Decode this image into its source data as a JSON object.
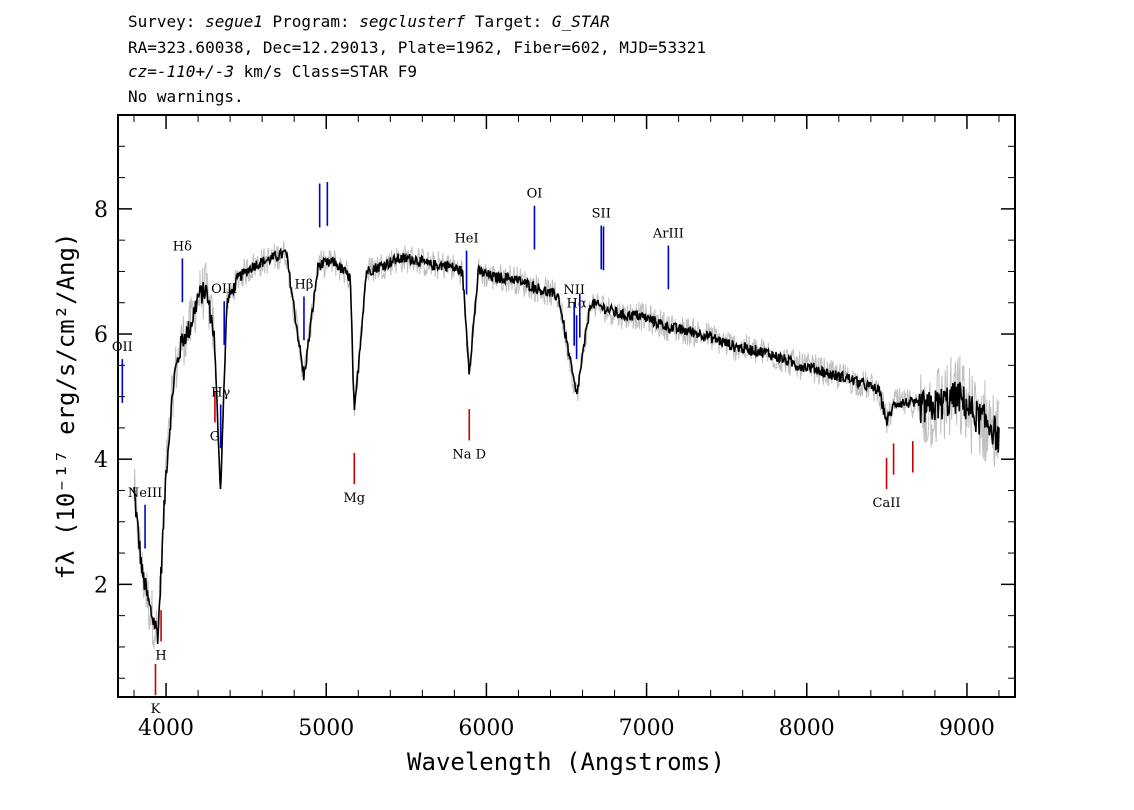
{
  "header": {
    "survey_label": "Survey:",
    "survey": "segue1",
    "program_label": "Program:",
    "program": "segclusterf",
    "target_label": "Target:",
    "target": "G_STAR",
    "line2": "RA=323.60038, Dec=12.29013, Plate=1962, Fiber=602, MJD=53321",
    "cz_label": "cz=",
    "cz_value": "-110+/-3",
    "cz_unit_class": "km/s Class=STAR F9",
    "warnings": "No warnings."
  },
  "colors": {
    "flux": "#000000",
    "error": "#c0c0c0",
    "emission": "#0000cc",
    "absorption": "#cc0000"
  },
  "chart_data": {
    "type": "line",
    "xlabel": "Wavelength (Angstroms)",
    "ylabel": "fλ (10⁻¹⁷ erg/s/cm²/Ang)",
    "xlim": [
      3700,
      9300
    ],
    "ylim": [
      0.2,
      9.5
    ],
    "x_ticks": [
      4000,
      5000,
      6000,
      7000,
      8000,
      9000
    ],
    "x_tick_labels": [
      "4000",
      "5000",
      "6000",
      "7000",
      "8000",
      "9000"
    ],
    "y_ticks": [
      2,
      4,
      6,
      8
    ],
    "y_tick_labels": [
      "2",
      "4",
      "6",
      "8"
    ],
    "grid": false,
    "series": [
      {
        "x": [
          3800,
          3850,
          3900,
          3950,
          4000,
          4050,
          4100,
          4150,
          4200,
          4250,
          4300,
          4340,
          4380,
          4450,
          4550,
          4650,
          4750,
          4861,
          4950,
          5050,
          5150,
          5175,
          5250,
          5350,
          5450,
          5550,
          5650,
          5750,
          5850,
          5893,
          5950,
          6050,
          6150,
          6250,
          6350,
          6450,
          6563,
          6650,
          6750,
          6850,
          6950,
          7050,
          7150,
          7250,
          7350,
          7450,
          7550,
          7650,
          7750,
          7850,
          7950,
          8050,
          8150,
          8250,
          8350,
          8450,
          8500,
          8550,
          8650,
          8750,
          8850,
          8950,
          9050,
          9150,
          9200
        ],
        "y": [
          3.5,
          2.2,
          1.6,
          1.2,
          3.8,
          5.3,
          5.9,
          6.1,
          6.6,
          6.7,
          6.0,
          3.5,
          6.5,
          6.9,
          7.1,
          7.2,
          7.3,
          5.3,
          7.1,
          7.15,
          6.9,
          4.7,
          7.0,
          7.1,
          7.2,
          7.2,
          7.1,
          7.1,
          7.0,
          5.4,
          7.0,
          6.9,
          6.9,
          6.8,
          6.7,
          6.6,
          5.0,
          6.5,
          6.4,
          6.3,
          6.3,
          6.2,
          6.1,
          6.05,
          6.0,
          5.9,
          5.8,
          5.75,
          5.7,
          5.6,
          5.5,
          5.45,
          5.35,
          5.3,
          5.2,
          5.1,
          4.6,
          4.9,
          4.9,
          4.8,
          4.9,
          5.0,
          4.7,
          4.55,
          4.3
        ]
      }
    ],
    "lines": [
      {
        "label": "OII",
        "x": 3727,
        "type": "emission"
      },
      {
        "label": "NeIII",
        "x": 3869,
        "type": "emission"
      },
      {
        "label": "K",
        "x": 3934,
        "type": "absorption"
      },
      {
        "label": "H",
        "x": 3969,
        "type": "absorption"
      },
      {
        "label": "Hδ",
        "x": 4102,
        "type": "emission"
      },
      {
        "label": "G",
        "x": 4305,
        "type": "absorption"
      },
      {
        "label": "Hγ",
        "x": 4341,
        "type": "emission"
      },
      {
        "label": "OIII",
        "x": 4363,
        "type": "emission"
      },
      {
        "label": "Hβ",
        "x": 4861,
        "type": "emission"
      },
      {
        "label": "OIII",
        "x": 4959,
        "type": "emission"
      },
      {
        "label": "OIII",
        "x": 5007,
        "type": "emission"
      },
      {
        "label": "Mg",
        "x": 5175,
        "type": "absorption"
      },
      {
        "label": "HeI",
        "x": 5876,
        "type": "emission"
      },
      {
        "label": "Na D",
        "x": 5893,
        "type": "absorption"
      },
      {
        "label": "OI",
        "x": 6300,
        "type": "emission"
      },
      {
        "label": "NII",
        "x": 6548,
        "type": "emission"
      },
      {
        "label": "Hα",
        "x": 6563,
        "type": "emission"
      },
      {
        "label": "NII",
        "x": 6583,
        "type": "emission"
      },
      {
        "label": "SII",
        "x": 6717,
        "type": "emission"
      },
      {
        "label": "SII",
        "x": 6731,
        "type": "emission"
      },
      {
        "label": "ArIII",
        "x": 7136,
        "type": "emission"
      },
      {
        "label": "CaII",
        "x": 8498,
        "type": "absorption"
      },
      {
        "label": "CaII",
        "x": 8542,
        "type": "absorption"
      },
      {
        "label": "CaII",
        "x": 8662,
        "type": "absorption"
      }
    ]
  }
}
